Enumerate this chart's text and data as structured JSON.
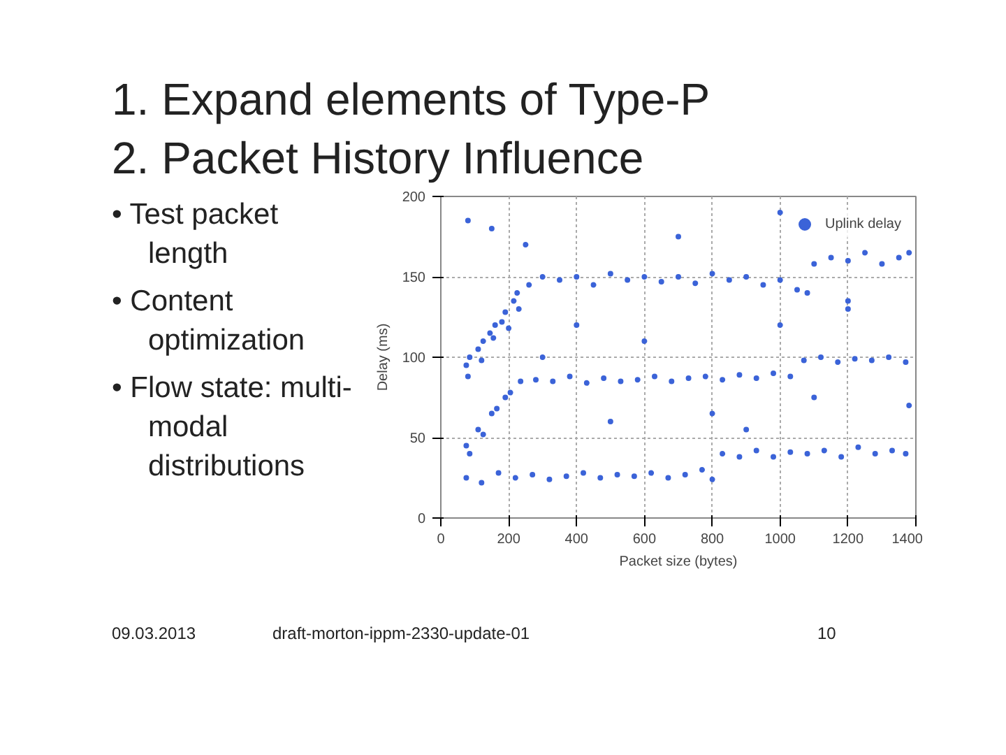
{
  "chart_data": {
    "type": "scatter",
    "title": "1. Expand elements of Type-P\n2. Packet History Influence",
    "xlabel": "Packet size (bytes)",
    "ylabel": "Delay (ms)",
    "annotations": [
      "• Test packet length",
      "• Content optimization",
      "• Flow state: multi-modal distributions",
      "09.03.2013",
      "draft-morton-ippm-2330-update-01",
      "10"
    ],
    "xlim": [
      0,
      1400
    ],
    "ylim": [
      0,
      200
    ],
    "xticks": [
      0,
      200,
      400,
      600,
      800,
      1000,
      1200,
      1400
    ],
    "yticks": [
      0,
      50,
      100,
      150,
      200
    ],
    "grid": true,
    "legend": "top right",
    "marker": "circle",
    "series": [
      {
        "name": "Uplink delay",
        "color": "#3b63d8",
        "x": [
          75,
          80,
          85,
          110,
          120,
          125,
          145,
          155,
          160,
          180,
          190,
          200,
          215,
          225,
          230,
          260,
          300,
          350,
          400,
          450,
          500,
          550,
          600,
          650,
          700,
          750,
          800,
          850,
          900,
          950,
          1000,
          1050,
          1080,
          1100,
          1150,
          1200,
          1250,
          1300,
          1350,
          1380,
          75,
          85,
          110,
          125,
          150,
          165,
          190,
          205,
          235,
          280,
          330,
          380,
          430,
          480,
          530,
          580,
          630,
          680,
          730,
          780,
          830,
          880,
          930,
          980,
          1030,
          1070,
          1120,
          1170,
          1220,
          1270,
          1320,
          1370,
          75,
          120,
          170,
          220,
          270,
          320,
          370,
          420,
          470,
          520,
          570,
          620,
          670,
          720,
          770,
          800,
          830,
          880,
          930,
          980,
          1030,
          1080,
          1130,
          1180,
          1230,
          1280,
          1330,
          1370,
          80,
          150,
          400,
          600,
          800,
          1000,
          1200,
          1000,
          500,
          700,
          300,
          900,
          1100,
          1200,
          250,
          1380
        ],
        "values": [
          95,
          88,
          100,
          105,
          98,
          110,
          115,
          112,
          120,
          122,
          128,
          118,
          135,
          140,
          130,
          145,
          150,
          148,
          150,
          145,
          152,
          148,
          150,
          147,
          150,
          146,
          152,
          148,
          150,
          145,
          148,
          142,
          140,
          158,
          162,
          160,
          165,
          158,
          162,
          165,
          45,
          40,
          55,
          52,
          65,
          68,
          75,
          78,
          85,
          86,
          85,
          88,
          84,
          87,
          85,
          86,
          88,
          85,
          87,
          88,
          86,
          89,
          87,
          90,
          88,
          98,
          100,
          97,
          99,
          98,
          100,
          97,
          25,
          22,
          28,
          25,
          27,
          24,
          26,
          28,
          25,
          27,
          26,
          28,
          25,
          27,
          30,
          24,
          40,
          38,
          42,
          38,
          41,
          40,
          42,
          38,
          44,
          40,
          42,
          40,
          185,
          180,
          120,
          110,
          65,
          120,
          130,
          190,
          60,
          175,
          100,
          55,
          75,
          135,
          170,
          70
        ]
      }
    ]
  }
}
